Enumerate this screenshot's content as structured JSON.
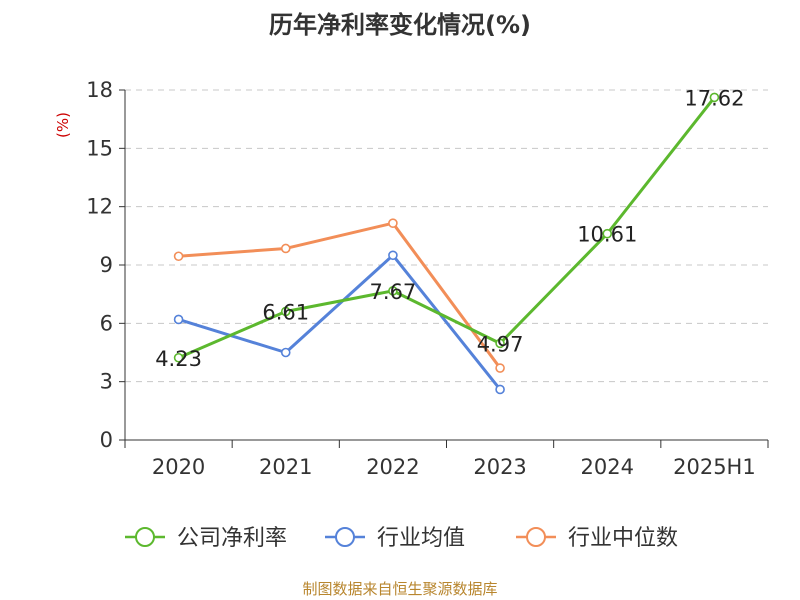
{
  "chart_data": {
    "type": "line",
    "title": "历年净利率变化情况(%)",
    "ylabel": "(%)",
    "xlabel": "",
    "categories": [
      "2020",
      "2021",
      "2022",
      "2023",
      "2024",
      "2025H1"
    ],
    "ylim": [
      0,
      18
    ],
    "yticks": [
      0,
      3,
      6,
      9,
      12,
      15,
      18
    ],
    "grid": true,
    "legend_position": "bottom",
    "series": [
      {
        "name": "公司净利率",
        "color": "#5cb82e",
        "values": [
          4.23,
          6.61,
          7.67,
          4.97,
          10.61,
          17.62
        ],
        "labels": [
          "4.23",
          "6.61",
          "7.67",
          "4.97",
          "10.61",
          "17.62"
        ]
      },
      {
        "name": "行业均值",
        "color": "#5582d9",
        "values": [
          6.2,
          4.5,
          9.5,
          2.6,
          null,
          null
        ],
        "labels": []
      },
      {
        "name": "行业中位数",
        "color": "#f28e58",
        "values": [
          9.45,
          9.85,
          11.15,
          3.7,
          null,
          null
        ],
        "labels": []
      }
    ]
  },
  "source": "制图数据来自恒生聚源数据库"
}
